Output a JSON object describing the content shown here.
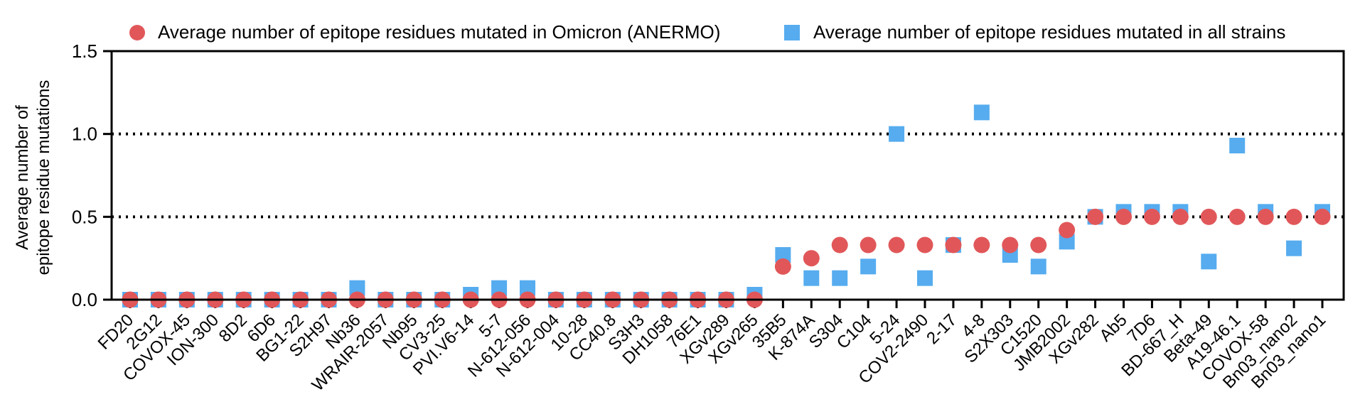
{
  "chart_data": {
    "type": "scatter",
    "title": "",
    "xlabel": "",
    "ylabel": [
      "Average number of",
      "epitope residue mutations"
    ],
    "ylim": [
      0,
      1.5
    ],
    "yticks": [
      "0.0",
      "0.5",
      "1.0",
      "1.5"
    ],
    "reference_lines": [
      0.5,
      1.0
    ],
    "legend": {
      "placement": "top",
      "entries": [
        {
          "name": "Average number of epitope residues mutated in Omicron (ANERMO)",
          "marker": "circle",
          "color": "#E15759"
        },
        {
          "name": "Average number of epitope residues mutated in all strains",
          "marker": "square",
          "color": "#56ACEF"
        }
      ]
    },
    "categories": [
      "FD20",
      "2G12",
      "COVOX-45",
      "ION-300",
      "8D2",
      "6D6",
      "BG1-22",
      "S2H97",
      "Nb36",
      "WRAIR-2057",
      "Nb95",
      "CV3-25",
      "PVI.V6-14",
      "5-7",
      "N-612-056",
      "N-612-004",
      "10-28",
      "CC40.8",
      "S3H3",
      "DH1058",
      "76E1",
      "XGv289",
      "XGv265",
      "35B5",
      "K-874A",
      "S304",
      "C104",
      "5-24",
      "COV2-2490",
      "2-17",
      "4-8",
      "S2X303",
      "C1520",
      "JMB2002",
      "XGv282",
      "Ab5",
      "7D6",
      "BD-667_H",
      "Beta-49",
      "A19-46.1",
      "COVOX-58",
      "Bn03_nano2",
      "Bn03_nano1"
    ],
    "series": [
      {
        "name": "Average number of epitope residues mutated in Omicron (ANERMO)",
        "marker": "circle",
        "color": "#E15759",
        "values": [
          0,
          0,
          0,
          0,
          0,
          0,
          0,
          0,
          0,
          0,
          0,
          0,
          0,
          0,
          0,
          0,
          0,
          0,
          0,
          0,
          0,
          0,
          0,
          0.2,
          0.25,
          0.33,
          0.33,
          0.33,
          0.33,
          0.33,
          0.33,
          0.33,
          0.33,
          0.42,
          0.5,
          0.5,
          0.5,
          0.5,
          0.5,
          0.5,
          0.5,
          0.5,
          0.5
        ]
      },
      {
        "name": "Average number of epitope residues mutated in all strains",
        "marker": "square",
        "color": "#56ACEF",
        "values": [
          0,
          0,
          0,
          0,
          0,
          0,
          0,
          0,
          0.07,
          0,
          0,
          0,
          0.03,
          0.07,
          0.07,
          0,
          0,
          0,
          0,
          0,
          0,
          0,
          0.03,
          0.27,
          0.13,
          0.13,
          0.2,
          1.0,
          0.13,
          0.33,
          1.13,
          0.27,
          0.2,
          0.35,
          0.5,
          0.53,
          0.53,
          0.53,
          0.23,
          0.93,
          0.53,
          0.31,
          0.53
        ]
      }
    ]
  }
}
